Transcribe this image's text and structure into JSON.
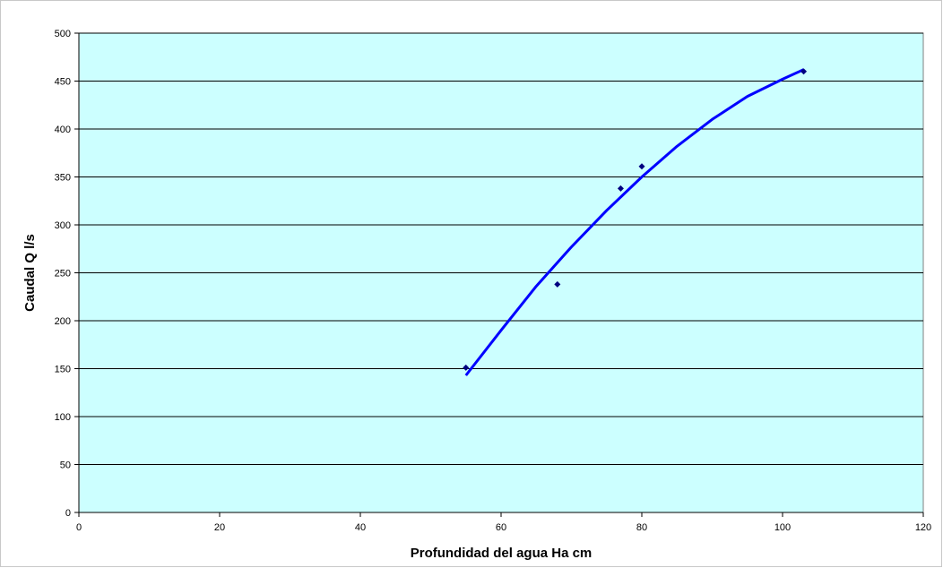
{
  "chart_data": {
    "type": "scatter",
    "title": "",
    "xlabel": "Profundidad del agua Ha cm",
    "ylabel": "Caudal Q l/s",
    "xlim": [
      0,
      120
    ],
    "ylim": [
      0,
      500
    ],
    "x_ticks": [
      0,
      20,
      40,
      60,
      80,
      100,
      120
    ],
    "y_ticks": [
      0,
      50,
      100,
      150,
      200,
      250,
      300,
      350,
      400,
      450,
      500
    ],
    "grid": "horizontal",
    "legend": "none",
    "series": [
      {
        "kind": "points",
        "marker": "diamond",
        "x": [
          55,
          68,
          77,
          80,
          103
        ],
        "y": [
          151,
          238,
          338,
          361,
          460
        ]
      },
      {
        "kind": "trendline",
        "x": [
          55,
          60,
          65,
          70,
          75,
          80,
          85,
          90,
          95,
          100,
          103
        ],
        "y": [
          143,
          190,
          236,
          277,
          315,
          350,
          382,
          410,
          434,
          452,
          462
        ]
      }
    ],
    "colors": {
      "plot_background": "#ccffff",
      "gridline": "#000000",
      "points": "#000080",
      "trendline": "#0000ff"
    }
  }
}
